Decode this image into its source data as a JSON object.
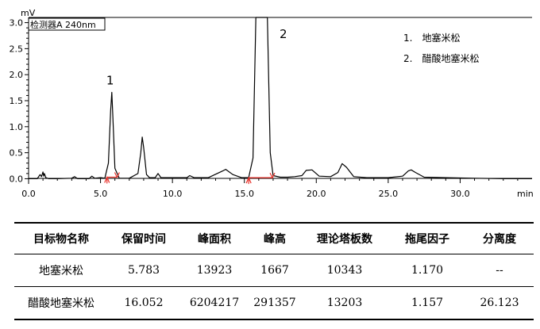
{
  "chart_data": {
    "type": "line",
    "y_unit": "mV",
    "x_unit": "min",
    "detector_label": "检测器A 240nm",
    "xlim": [
      0,
      35
    ],
    "ylim": [
      -0.1,
      3.1
    ],
    "x_ticks": [
      "0.0",
      "5.0",
      "10.0",
      "15.0",
      "20.0",
      "25.0",
      "30.0"
    ],
    "y_ticks": [
      "0.0",
      "0.5",
      "1.0",
      "1.5",
      "2.0",
      "2.5",
      "3.0"
    ],
    "grid": false,
    "legend": [
      "1.　地塞米松",
      "2.　醋酸地塞米松"
    ],
    "legend_position": "top-right",
    "peaks": [
      {
        "label": "1",
        "x": 5.78,
        "y": 1.66
      },
      {
        "label": "2",
        "x": 16.05,
        "y": 3.1
      }
    ],
    "series": [
      {
        "x": [
          0.0,
          0.6,
          0.8,
          0.9,
          1.0,
          1.05,
          1.1,
          1.2,
          1.4,
          2.0,
          3.0,
          3.2,
          3.4,
          4.2,
          4.4,
          4.6,
          5.0,
          5.3,
          5.55,
          5.7,
          5.783,
          5.86,
          6.0,
          6.3,
          7.0,
          7.6,
          7.8,
          7.9,
          8.0,
          8.2,
          8.4,
          8.8,
          9.0,
          9.2,
          10.0,
          11.0,
          11.2,
          11.5,
          12.5,
          13.5,
          13.7,
          14.2,
          14.8,
          15.3,
          15.6,
          15.8,
          16.2,
          16.6,
          16.8,
          17.0,
          17.5,
          18.0,
          18.5,
          19.0,
          19.3,
          19.7,
          20.2,
          21.0,
          21.5,
          21.8,
          22.1,
          22.6,
          23.5,
          25.0,
          26.0,
          26.4,
          26.6,
          26.9,
          27.5,
          29.0,
          31.0,
          33.0,
          35.0
        ],
        "y": [
          0.0,
          0.0,
          0.08,
          0.04,
          0.13,
          0.05,
          0.1,
          0.02,
          0.0,
          0.0,
          0.01,
          0.04,
          0.0,
          0.0,
          0.05,
          0.01,
          0.02,
          0.01,
          0.3,
          1.3,
          1.66,
          1.2,
          0.2,
          0.01,
          0.01,
          0.1,
          0.5,
          0.8,
          0.6,
          0.08,
          0.02,
          0.02,
          0.1,
          0.02,
          0.02,
          0.02,
          0.06,
          0.02,
          0.02,
          0.15,
          0.18,
          0.08,
          0.02,
          0.02,
          0.4,
          3.1,
          3.1,
          3.1,
          0.5,
          0.06,
          0.03,
          0.03,
          0.04,
          0.06,
          0.16,
          0.17,
          0.05,
          0.04,
          0.12,
          0.29,
          0.22,
          0.04,
          0.02,
          0.02,
          0.05,
          0.15,
          0.17,
          0.12,
          0.03,
          0.02,
          0.01,
          0.0,
          0.0
        ]
      }
    ],
    "integration_markers": [
      {
        "x_start": 5.45,
        "x_end": 6.15,
        "y": 0.03
      },
      {
        "x_start": 15.3,
        "x_end": 16.95,
        "y": 0.02
      }
    ]
  },
  "table": {
    "headers": [
      "目标物名称",
      "保留时间",
      "峰面积",
      "峰高",
      "理论塔板数",
      "拖尾因子",
      "分离度"
    ],
    "rows": [
      [
        "地塞米松",
        "5.783",
        "13923",
        "1667",
        "10343",
        "1.170",
        "--"
      ],
      [
        "醋酸地塞米松",
        "16.052",
        "6204217",
        "291357",
        "13203",
        "1.157",
        "26.123"
      ]
    ]
  },
  "colors": {
    "trace": "#000000",
    "marker": "#e8312a"
  }
}
